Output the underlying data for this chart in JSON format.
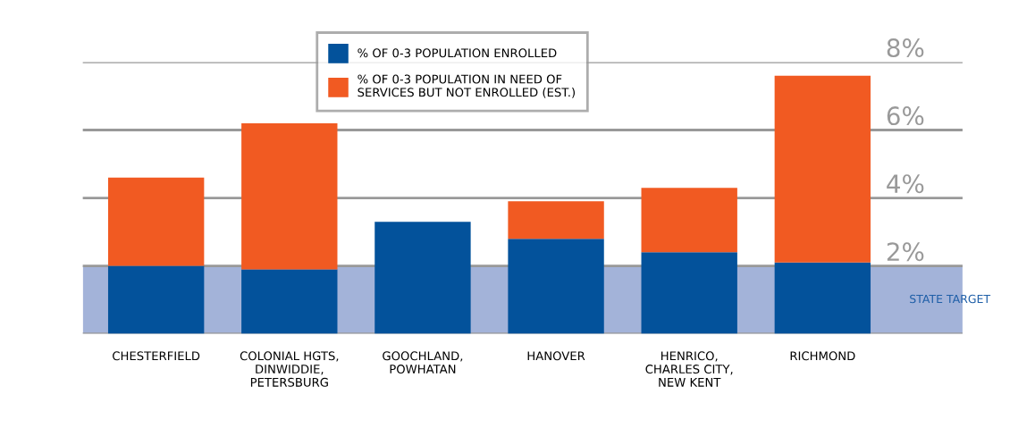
{
  "chart_data": {
    "type": "bar",
    "stacked": true,
    "categories": [
      "CHESTERFIELD",
      "COLONIAL HGTS,\nDINWIDDIE,\nPETERSBURG",
      "GOOCHLAND,\nPOWHATAN",
      "HANOVER",
      "HENRICO,\nCHARLES CITY,\nNEW KENT",
      "RICHMOND"
    ],
    "series": [
      {
        "name": "% OF 0-3 POPULATION ENROLLED",
        "color": "#03529b",
        "values": [
          2.0,
          1.9,
          3.3,
          2.8,
          2.4,
          2.1
        ]
      },
      {
        "name": "% OF 0-3 POPULATION IN NEED OF\nSERVICES BUT NOT ENROLLED (EST.)",
        "color": "#f15a22",
        "values": [
          2.6,
          4.3,
          null,
          1.1,
          1.9,
          5.5
        ]
      }
    ],
    "ylim": [
      0,
      8
    ],
    "yticks": [
      {
        "value": 2,
        "label": "2%"
      },
      {
        "value": 4,
        "label": "4%"
      },
      {
        "value": 6,
        "label": "6%"
      },
      {
        "value": 8,
        "label": "8%"
      }
    ],
    "grid": "y",
    "legend": "top",
    "bands": [
      {
        "axis": "y",
        "from": 0,
        "to": 2,
        "label": "STATE TARGET",
        "color": "#a3b3d9"
      }
    ]
  }
}
